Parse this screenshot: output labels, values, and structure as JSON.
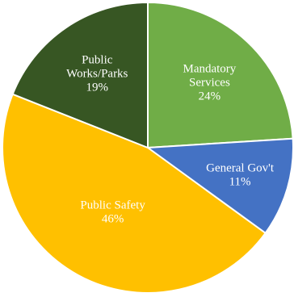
{
  "chart_data": {
    "type": "pie",
    "categories": [
      "Mandatory Services",
      "General Gov't",
      "Public Safety",
      "Public Works/Parks"
    ],
    "values": [
      24,
      11,
      46,
      19
    ],
    "labels": [
      [
        "Mandatory",
        "Services",
        "24%"
      ],
      [
        "General Gov't",
        "11%"
      ],
      [
        "Public Safety",
        "46%"
      ],
      [
        "Public",
        "Works/Parks",
        "19%"
      ]
    ],
    "colors": [
      "#70ad47",
      "#4472c4",
      "#ffc000",
      "#375623"
    ],
    "start": "top",
    "direction": "clockwise",
    "title": "",
    "legend": "none"
  }
}
